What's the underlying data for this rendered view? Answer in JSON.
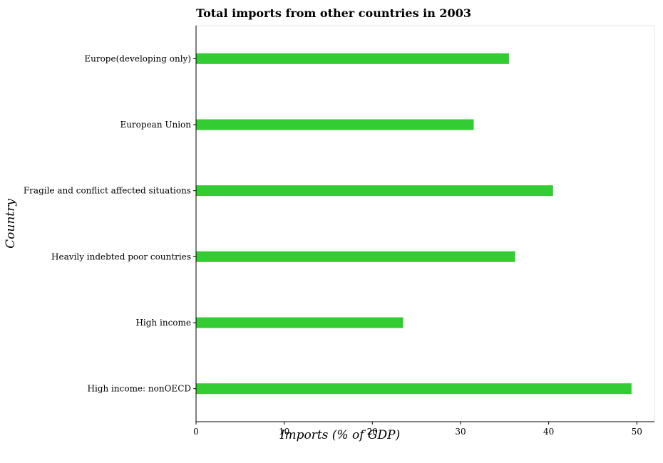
{
  "chart_data": {
    "type": "bar",
    "orientation": "horizontal",
    "title": "Total imports from other countries in 2003",
    "xlabel": "Imports (% of GDP)",
    "ylabel": "Country",
    "xlim": [
      0,
      52
    ],
    "xticks": [
      0,
      10,
      20,
      30,
      40,
      50
    ],
    "categories": [
      "Europe(developing only)",
      "European Union",
      "Fragile and conflict affected situations",
      "Heavily indebted poor countries",
      "High income",
      "High income: nonOECD"
    ],
    "values": [
      35.5,
      31.5,
      40.5,
      36.2,
      23.5,
      49.4
    ],
    "bar_color": "#33cc33",
    "grid": false
  }
}
